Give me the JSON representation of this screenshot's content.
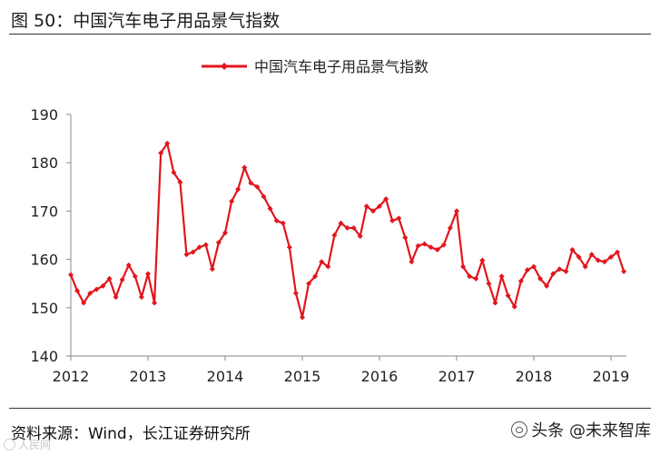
{
  "figure_title": "图 50：中国汽车电子用品景气指数",
  "source": "资料来源：Wind，长江证券研究所",
  "watermark_left": "人民网",
  "watermark_right": "头条 @未来智库",
  "colors": {
    "series": "#e1161c",
    "axis": "#888888",
    "text": "#222222"
  },
  "chart_data": {
    "type": "line",
    "title": "",
    "xlabel": "",
    "ylabel": "",
    "ylim": [
      140,
      190
    ],
    "yticks": [
      140,
      150,
      160,
      170,
      180,
      190
    ],
    "xlim": [
      2012,
      2019.2
    ],
    "xticks": [
      "2012",
      "2013",
      "2014",
      "2015",
      "2016",
      "2017",
      "2018",
      "2019"
    ],
    "legend_position": "top-center",
    "series": [
      {
        "name": "中国汽车电子用品景气指数",
        "marker": "diamond",
        "x": [
          2012.0,
          2012.0833,
          2012.1667,
          2012.25,
          2012.3333,
          2012.4167,
          2012.5,
          2012.5833,
          2012.6667,
          2012.75,
          2012.8333,
          2012.9167,
          2013.0,
          2013.0833,
          2013.1667,
          2013.25,
          2013.3333,
          2013.4167,
          2013.5,
          2013.5833,
          2013.6667,
          2013.75,
          2013.8333,
          2013.9167,
          2014.0,
          2014.0833,
          2014.1667,
          2014.25,
          2014.3333,
          2014.4167,
          2014.5,
          2014.5833,
          2014.6667,
          2014.75,
          2014.8333,
          2014.9167,
          2015.0,
          2015.0833,
          2015.1667,
          2015.25,
          2015.3333,
          2015.4167,
          2015.5,
          2015.5833,
          2015.6667,
          2015.75,
          2015.8333,
          2015.9167,
          2016.0,
          2016.0833,
          2016.1667,
          2016.25,
          2016.3333,
          2016.4167,
          2016.5,
          2016.5833,
          2016.6667,
          2016.75,
          2016.8333,
          2016.9167,
          2017.0,
          2017.0833,
          2017.1667,
          2017.25,
          2017.3333,
          2017.4167,
          2017.5,
          2017.5833,
          2017.6667,
          2017.75,
          2017.8333,
          2017.9167,
          2018.0,
          2018.0833,
          2018.1667,
          2018.25,
          2018.3333,
          2018.4167,
          2018.5,
          2018.5833,
          2018.6667,
          2018.75,
          2018.8333,
          2018.9167,
          2019.0,
          2019.0833,
          2019.1667
        ],
        "values": [
          156.8,
          153.5,
          151.0,
          153.0,
          153.8,
          154.5,
          156.0,
          152.2,
          155.8,
          158.8,
          156.5,
          152.2,
          157.0,
          151.0,
          182.0,
          184.0,
          178.0,
          176.0,
          161.0,
          161.5,
          162.5,
          163.0,
          158.0,
          163.5,
          165.5,
          172.0,
          174.5,
          179.0,
          175.8,
          175.0,
          173.0,
          170.5,
          168.0,
          167.5,
          162.5,
          153.0,
          148.0,
          155.0,
          156.5,
          159.5,
          158.5,
          165.0,
          167.5,
          166.5,
          166.5,
          164.8,
          171.0,
          170.0,
          171.0,
          172.5,
          168.0,
          168.5,
          164.5,
          159.5,
          162.8,
          163.2,
          162.5,
          162.0,
          163.0,
          166.5,
          170.0,
          158.5,
          156.5,
          156.0,
          159.8,
          155.0,
          151.0,
          156.5,
          152.5,
          150.2,
          155.5,
          157.8,
          158.5,
          156.0,
          154.5,
          157.0,
          158.0,
          157.5,
          162.0,
          160.5,
          158.5,
          161.0,
          159.8,
          159.5,
          160.5,
          161.5,
          157.5
        ]
      }
    ]
  }
}
